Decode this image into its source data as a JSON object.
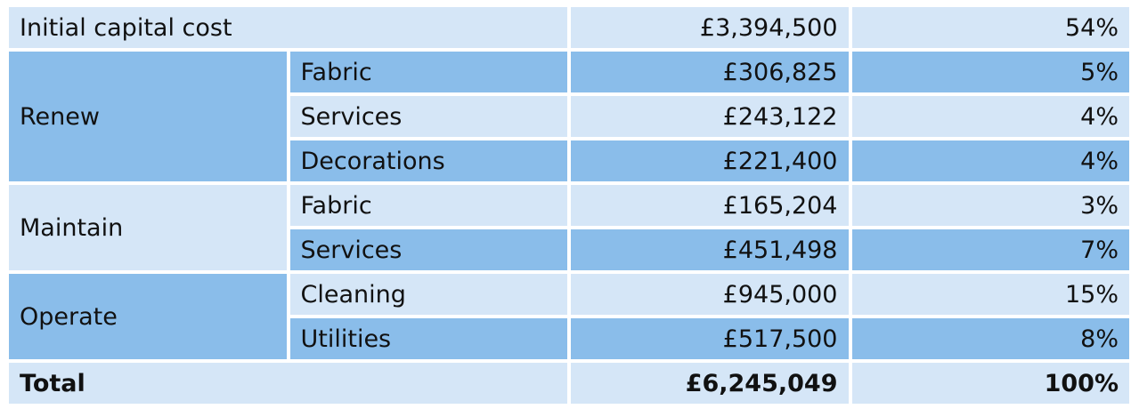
{
  "table": {
    "first": {
      "label": "Initial capital cost",
      "cost": "£3,394,500",
      "share": "54%"
    },
    "groups": [
      {
        "label": "Renew",
        "items": [
          {
            "label": "Fabric",
            "cost": "£306,825",
            "share": "5%"
          },
          {
            "label": "Services",
            "cost": "£243,122",
            "share": "4%"
          },
          {
            "label": "Decorations",
            "cost": "£221,400",
            "share": "4%"
          }
        ]
      },
      {
        "label": "Maintain",
        "items": [
          {
            "label": "Fabric",
            "cost": "£165,204",
            "share": "3%"
          },
          {
            "label": "Services",
            "cost": "£451,498",
            "share": "7%"
          }
        ]
      },
      {
        "label": "Operate",
        "items": [
          {
            "label": "Cleaning",
            "cost": "£945,000",
            "share": "15%"
          },
          {
            "label": "Utilities",
            "cost": "£517,500",
            "share": "8%"
          }
        ]
      }
    ],
    "total": {
      "label": "Total",
      "cost": "£6,245,049",
      "share": "100%"
    }
  }
}
